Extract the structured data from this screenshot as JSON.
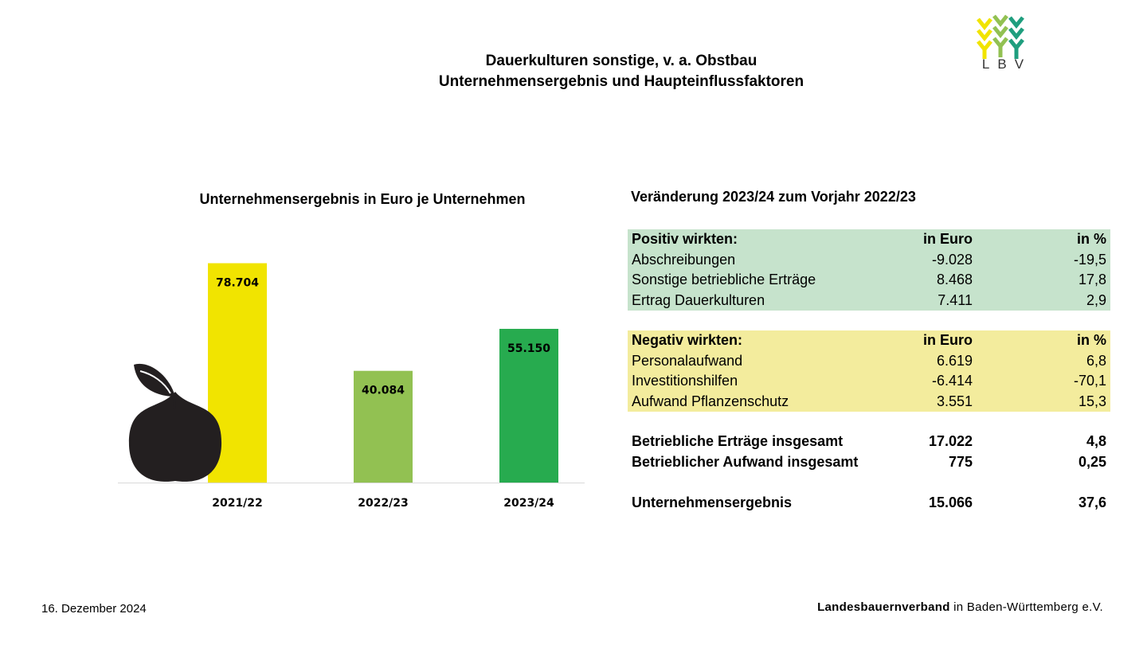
{
  "header": {
    "title_line1": "Dauerkulturen sonstige, v. a. Obstbau",
    "title_line2": "Unternehmensergebnis und Haupteinflussfaktoren",
    "logo_text": "LBV"
  },
  "chart_data": {
    "type": "bar",
    "title": "Unternehmensergebnis in Euro je Unternehmen",
    "categories": [
      "2021/22",
      "2022/23",
      "2023/24"
    ],
    "values": [
      78704,
      40084,
      55150
    ],
    "value_labels": [
      "78.704",
      "40.084",
      "55.150"
    ],
    "colors": [
      "#f1e400",
      "#92c152",
      "#27ab4f"
    ],
    "ylim": [
      0,
      80000
    ],
    "grid": false,
    "legend": "none"
  },
  "table": {
    "title": "Veränderung 2023/24 zum Vorjahr 2022/23",
    "positive": {
      "header": [
        "Positiv wirkten:",
        "in Euro",
        "in %"
      ],
      "rows": [
        [
          "Abschreibungen",
          "-9.028",
          "-19,5"
        ],
        [
          "Sonstige betriebliche Erträge",
          "8.468",
          "17,8"
        ],
        [
          "Ertrag Dauerkulturen",
          "7.411",
          "2,9"
        ]
      ]
    },
    "negative": {
      "header": [
        "Negativ wirkten:",
        "in Euro",
        "in %"
      ],
      "rows": [
        [
          "Personalaufwand",
          "6.619",
          "6,8"
        ],
        [
          "Investitionshilfen",
          "-6.414",
          "-70,1"
        ],
        [
          "Aufwand Pflanzenschutz",
          "3.551",
          "15,3"
        ]
      ]
    },
    "totals": [
      [
        "Betriebliche Erträge insgesamt",
        "17.022",
        "4,8"
      ],
      [
        "Betrieblicher Aufwand insgesamt",
        "775",
        "0,25"
      ]
    ],
    "result": [
      "Unternehmensergebnis",
      "15.066",
      "37,6"
    ]
  },
  "footer": {
    "date": "16. Dezember 2024",
    "org_bold": "Landesbauernverband",
    "org_rest": " in Baden-Württemberg e.V."
  },
  "colors": {
    "positive_bg": "#c6e3cc",
    "negative_bg": "#f3ec9d",
    "apple": "#231f20"
  },
  "icons": [
    "apple-icon",
    "lbv-logo"
  ]
}
